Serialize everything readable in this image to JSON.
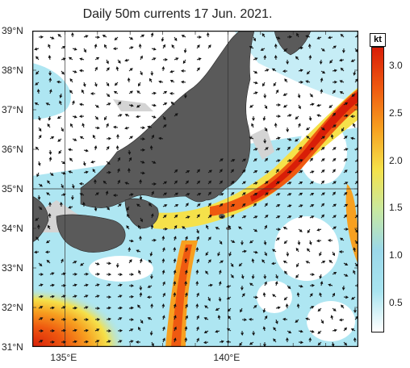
{
  "title": "Daily 50m currents 17 Jun. 2021.",
  "latitude_labels": [
    "39°N",
    "38°N",
    "37°N",
    "36°N",
    "35°N",
    "34°N",
    "33°N",
    "32°N",
    "31°N"
  ],
  "longitude_labels": [
    "135°E",
    "140°E"
  ],
  "colorbar": {
    "unit": "kt",
    "tick_labels": [
      "3.0",
      "2.5",
      "2.0",
      "1.5",
      "1.0",
      "0.5"
    ],
    "range": [
      0.2,
      3.2
    ],
    "colors": [
      "#ffffff",
      "#a8e4f0",
      "#9bd8ea",
      "#c8e8a0",
      "#f5e14a",
      "#f7a020",
      "#ef5a10",
      "#d81e08"
    ]
  },
  "map": {
    "lon_range": [
      134,
      144
    ],
    "lat_range": [
      31,
      39
    ],
    "land_color": "#5a5a5a",
    "shelf_color": "#d4d4d4"
  }
}
